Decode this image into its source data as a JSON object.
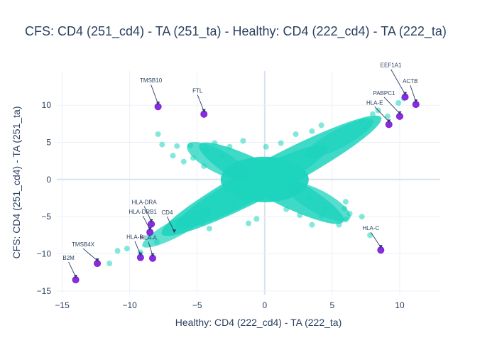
{
  "chart_data": {
    "type": "scatter",
    "title": "CFS: CD4 (251_cd4) - TA (251_ta) - Healthy: CD4 (222_cd4) - TA (222_ta)",
    "xlabel": "Healthy: CD4 (222_cd4) - TA (222_ta)",
    "ylabel": "CFS: CD4 (251_cd4) - TA (251_ta)",
    "xlim": [
      -15.4,
      13.0
    ],
    "ylim": [
      -15.5,
      14.6
    ],
    "xticks": [
      -15,
      -10,
      -5,
      0,
      5,
      10
    ],
    "yticks": [
      -15,
      -10,
      -5,
      0,
      5,
      10
    ],
    "grid": true,
    "colors": {
      "background": "#ffffff",
      "grid": "#ebf0f8",
      "zeroline": "#d8e2f0",
      "points": "#1dd3bd",
      "highlight": "#8a2be2",
      "text": "#2a3f5f"
    },
    "background_series": {
      "outliers": [
        [
          -7.9,
          6.1
        ],
        [
          -7.6,
          4.7
        ],
        [
          -6.5,
          4.5
        ],
        [
          -5.5,
          4.6
        ],
        [
          -6.8,
          3.2
        ],
        [
          -4.3,
          3.8
        ],
        [
          -3.7,
          4.9
        ],
        [
          -2.6,
          4.4
        ],
        [
          -6.0,
          2.4
        ],
        [
          -5.3,
          2.9
        ],
        [
          -4.5,
          1.8
        ],
        [
          4.2,
          -4.9
        ],
        [
          5.5,
          -6.1
        ],
        [
          6.0,
          -5.4
        ],
        [
          6.3,
          -4.6
        ],
        [
          5.9,
          -3.9
        ],
        [
          7.2,
          -5.0
        ],
        [
          7.8,
          -7.5
        ],
        [
          3.5,
          -6.1
        ],
        [
          6.0,
          -3.0
        ],
        [
          4.5,
          -4.0
        ],
        [
          -11.5,
          -11.3
        ],
        [
          -10.2,
          -9.3
        ],
        [
          -9.2,
          -9.8
        ],
        [
          -10.9,
          -9.6
        ],
        [
          -8.0,
          -8.4
        ],
        [
          -8.6,
          -7.7
        ],
        [
          -4.1,
          -6.6
        ],
        [
          -4.6,
          -5.9
        ],
        [
          -1.2,
          -5.9
        ],
        [
          -0.6,
          -5.3
        ],
        [
          2.6,
          -4.8
        ],
        [
          7.2,
          7.8
        ],
        [
          7.7,
          7.4
        ],
        [
          8.4,
          9.3
        ],
        [
          9.9,
          10.3
        ],
        [
          10.3,
          10.9
        ],
        [
          9.1,
          8.5
        ],
        [
          8.0,
          8.8
        ],
        [
          7.4,
          6.8
        ],
        [
          0.1,
          4.4
        ],
        [
          1.2,
          4.9
        ],
        [
          -1.6,
          5.2
        ],
        [
          2.3,
          6.1
        ],
        [
          3.5,
          6.5
        ],
        [
          4.2,
          7.3
        ],
        [
          -3.2,
          3.2
        ],
        [
          -2.3,
          -3.4
        ],
        [
          1.6,
          -4.0
        ],
        [
          3.3,
          -2.4
        ]
      ]
    },
    "highlighted_genes": [
      {
        "gene": "TMSB10",
        "x": -7.9,
        "y": 9.8
      },
      {
        "gene": "FTL",
        "x": -4.5,
        "y": 8.8
      },
      {
        "gene": "EEF1A1",
        "x": 10.4,
        "y": 11.1
      },
      {
        "gene": "ACTB",
        "x": 11.2,
        "y": 10.1
      },
      {
        "gene": "PABPC1",
        "x": 10.0,
        "y": 8.5
      },
      {
        "gene": "HLA-E",
        "x": 9.2,
        "y": 7.4
      },
      {
        "gene": "HLA-DRA",
        "x": -8.4,
        "y": -6.0
      },
      {
        "gene": "HLA-DRB1",
        "x": -8.5,
        "y": -7.1
      },
      {
        "gene": "CD4",
        "x": -6.7,
        "y": -7.4
      },
      {
        "gene": "HLA-B",
        "x": -9.2,
        "y": -10.5
      },
      {
        "gene": "HLA-A",
        "x": -8.3,
        "y": -10.6
      },
      {
        "gene": "TMSB4X",
        "x": -12.4,
        "y": -11.3
      },
      {
        "gene": "B2M",
        "x": -14.0,
        "y": -13.5
      },
      {
        "gene": "HLA-C",
        "x": 8.6,
        "y": -9.5
      }
    ]
  }
}
